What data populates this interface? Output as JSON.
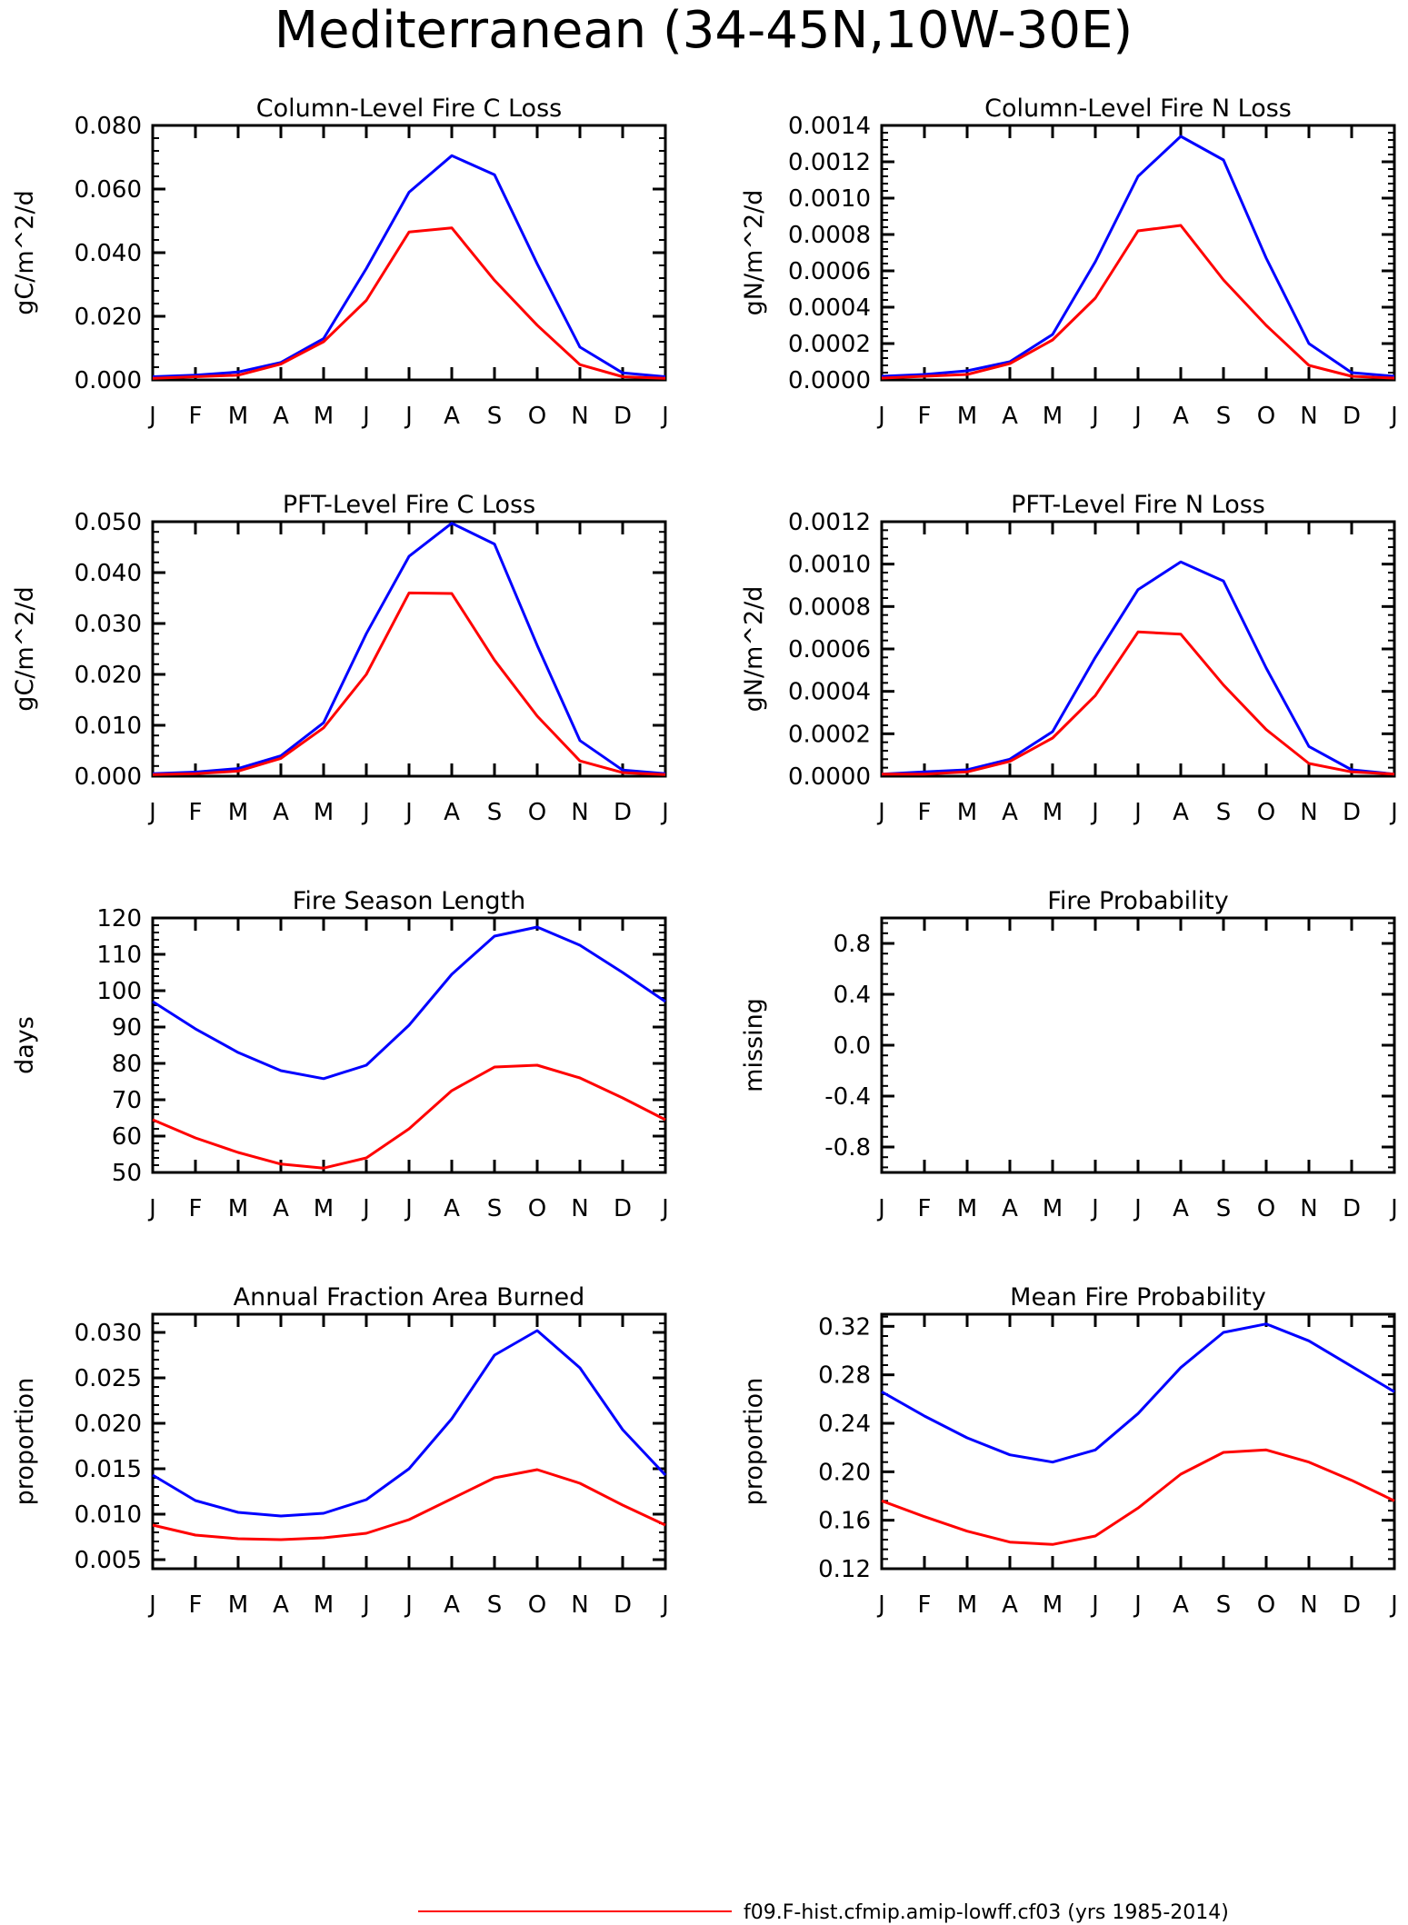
{
  "figure": {
    "title": "Mediterranean (34-45N,10W-30E)"
  },
  "colors": {
    "case": "#ff0000",
    "reference": "#0000ff",
    "axis": "#000000"
  },
  "legend": {
    "entries": [
      {
        "label": "f09.F-hist.cfmip.amip-lowff.cf03 (yrs 1985-2014)",
        "color": "#ff0000"
      }
    ]
  },
  "chart_data": [
    {
      "type": "line",
      "title": "Column-Level Fire C Loss",
      "xlabel": "",
      "ylabel": "gC/m^2/d",
      "categories": [
        "J",
        "F",
        "M",
        "A",
        "M",
        "J",
        "J",
        "A",
        "S",
        "O",
        "N",
        "D",
        "J"
      ],
      "ylim": [
        0,
        0.08
      ],
      "ytick_labels": [
        "0.000",
        "0.020",
        "0.040",
        "0.060",
        "0.080"
      ],
      "series": [
        {
          "color": "#0000ff",
          "values": [
            0.001,
            0.0015,
            0.0025,
            0.0055,
            0.013,
            0.035,
            0.059,
            0.0705,
            0.0645,
            0.0365,
            0.0103,
            0.0022,
            0.001
          ]
        },
        {
          "color": "#ff0000",
          "values": [
            0.0005,
            0.001,
            0.0015,
            0.005,
            0.012,
            0.025,
            0.0465,
            0.0478,
            0.0313,
            0.0172,
            0.0048,
            0.001,
            0.0005
          ]
        }
      ]
    },
    {
      "type": "line",
      "title": "Column-Level Fire N Loss",
      "xlabel": "",
      "ylabel": "gN/m^2/d",
      "categories": [
        "J",
        "F",
        "M",
        "A",
        "M",
        "J",
        "J",
        "A",
        "S",
        "O",
        "N",
        "D",
        "J"
      ],
      "ylim": [
        0,
        0.0014
      ],
      "ytick_labels": [
        "0.0000",
        "0.0002",
        "0.0004",
        "0.0006",
        "0.0008",
        "0.0010",
        "0.0012",
        "0.0014"
      ],
      "series": [
        {
          "color": "#0000ff",
          "values": [
            2e-05,
            3e-05,
            5e-05,
            0.0001,
            0.00025,
            0.00065,
            0.00112,
            0.00134,
            0.00121,
            0.00067,
            0.0002,
            4e-05,
            2e-05
          ]
        },
        {
          "color": "#ff0000",
          "values": [
            1e-05,
            2e-05,
            3e-05,
            9e-05,
            0.00022,
            0.00045,
            0.00082,
            0.00085,
            0.00055,
            0.0003,
            8e-05,
            2e-05,
            1e-05
          ]
        }
      ]
    },
    {
      "type": "line",
      "title": "PFT-Level Fire C Loss",
      "xlabel": "",
      "ylabel": "gC/m^2/d",
      "categories": [
        "J",
        "F",
        "M",
        "A",
        "M",
        "J",
        "J",
        "A",
        "S",
        "O",
        "N",
        "D",
        "J"
      ],
      "ylim": [
        0,
        0.05
      ],
      "ytick_labels": [
        "0.000",
        "0.010",
        "0.020",
        "0.030",
        "0.040",
        "0.050"
      ],
      "series": [
        {
          "color": "#0000ff",
          "values": [
            0.0005,
            0.0008,
            0.0015,
            0.004,
            0.0105,
            0.028,
            0.0432,
            0.0497,
            0.0456,
            0.0257,
            0.007,
            0.0012,
            0.0005
          ]
        },
        {
          "color": "#ff0000",
          "values": [
            0.0003,
            0.0005,
            0.001,
            0.0035,
            0.0095,
            0.02,
            0.036,
            0.0359,
            0.0228,
            0.0118,
            0.003,
            0.0007,
            0.0003
          ]
        }
      ]
    },
    {
      "type": "line",
      "title": "PFT-Level Fire N Loss",
      "xlabel": "",
      "ylabel": "gN/m^2/d",
      "categories": [
        "J",
        "F",
        "M",
        "A",
        "M",
        "J",
        "J",
        "A",
        "S",
        "O",
        "N",
        "D",
        "J"
      ],
      "ylim": [
        0,
        0.0012
      ],
      "ytick_labels": [
        "0.0000",
        "0.0002",
        "0.0004",
        "0.0006",
        "0.0008",
        "0.0010",
        "0.0012"
      ],
      "series": [
        {
          "color": "#0000ff",
          "values": [
            1e-05,
            2e-05,
            3e-05,
            8e-05,
            0.00021,
            0.00056,
            0.00088,
            0.00101,
            0.00092,
            0.00051,
            0.00014,
            3e-05,
            1e-05
          ]
        },
        {
          "color": "#ff0000",
          "values": [
            1e-05,
            1e-05,
            2e-05,
            7e-05,
            0.00018,
            0.00038,
            0.00068,
            0.00067,
            0.00043,
            0.00022,
            6e-05,
            2e-05,
            1e-05
          ]
        }
      ]
    },
    {
      "type": "line",
      "title": "Fire Season Length",
      "xlabel": "",
      "ylabel": "days",
      "categories": [
        "J",
        "F",
        "M",
        "A",
        "M",
        "J",
        "J",
        "A",
        "S",
        "O",
        "N",
        "D",
        "J"
      ],
      "ylim": [
        50,
        120
      ],
      "ytick_labels": [
        "50",
        "60",
        "70",
        "80",
        "90",
        "100",
        "110",
        "120"
      ],
      "series": [
        {
          "color": "#0000ff",
          "values": [
            97,
            89.5,
            83,
            78,
            75.8,
            79.5,
            90.5,
            104.5,
            115,
            117.5,
            112.5,
            105,
            97
          ]
        },
        {
          "color": "#ff0000",
          "values": [
            64.5,
            59.5,
            55.5,
            52.3,
            51.2,
            54,
            62,
            72.5,
            79,
            79.5,
            76,
            70.5,
            64.5
          ]
        }
      ]
    },
    {
      "type": "line",
      "title": "Fire Probability",
      "xlabel": "",
      "ylabel": "missing",
      "categories": [
        "J",
        "F",
        "M",
        "A",
        "M",
        "J",
        "J",
        "A",
        "S",
        "O",
        "N",
        "D",
        "J"
      ],
      "ylim": [
        -1,
        1
      ],
      "ytick_labels": [
        "-0.8",
        "-0.4",
        "0.0",
        "0.4",
        "0.8"
      ],
      "ytick_values": [
        -0.8,
        -0.4,
        0,
        0.4,
        0.8
      ],
      "series": []
    },
    {
      "type": "line",
      "title": "Annual Fraction Area Burned",
      "xlabel": "",
      "ylabel": "proportion",
      "categories": [
        "J",
        "F",
        "M",
        "A",
        "M",
        "J",
        "J",
        "A",
        "S",
        "O",
        "N",
        "D",
        "J"
      ],
      "ylim": [
        0.004,
        0.032
      ],
      "ytick_labels": [
        "0.005",
        "0.010",
        "0.015",
        "0.020",
        "0.025",
        "0.030"
      ],
      "ytick_values": [
        0.005,
        0.01,
        0.015,
        0.02,
        0.025,
        0.03
      ],
      "series": [
        {
          "color": "#0000ff",
          "values": [
            0.0143,
            0.0115,
            0.0102,
            0.0098,
            0.0101,
            0.0116,
            0.015,
            0.0205,
            0.0275,
            0.0302,
            0.0261,
            0.0193,
            0.0143
          ]
        },
        {
          "color": "#ff0000",
          "values": [
            0.0088,
            0.0077,
            0.0073,
            0.0072,
            0.0074,
            0.0079,
            0.0094,
            0.0117,
            0.014,
            0.0149,
            0.0134,
            0.011,
            0.0088
          ]
        }
      ]
    },
    {
      "type": "line",
      "title": "Mean Fire Probability",
      "xlabel": "",
      "ylabel": "proportion",
      "categories": [
        "J",
        "F",
        "M",
        "A",
        "M",
        "J",
        "J",
        "A",
        "S",
        "O",
        "N",
        "D",
        "J"
      ],
      "ylim": [
        0.12,
        0.33
      ],
      "ytick_labels": [
        "0.12",
        "0.16",
        "0.20",
        "0.24",
        "0.28",
        "0.32"
      ],
      "ytick_values": [
        0.12,
        0.16,
        0.2,
        0.24,
        0.28,
        0.32
      ],
      "series": [
        {
          "color": "#0000ff",
          "values": [
            0.266,
            0.246,
            0.228,
            0.214,
            0.208,
            0.218,
            0.248,
            0.286,
            0.315,
            0.322,
            0.308,
            0.287,
            0.266
          ]
        },
        {
          "color": "#ff0000",
          "values": [
            0.176,
            0.163,
            0.151,
            0.142,
            0.14,
            0.147,
            0.17,
            0.198,
            0.216,
            0.218,
            0.208,
            0.193,
            0.176
          ]
        }
      ]
    }
  ]
}
